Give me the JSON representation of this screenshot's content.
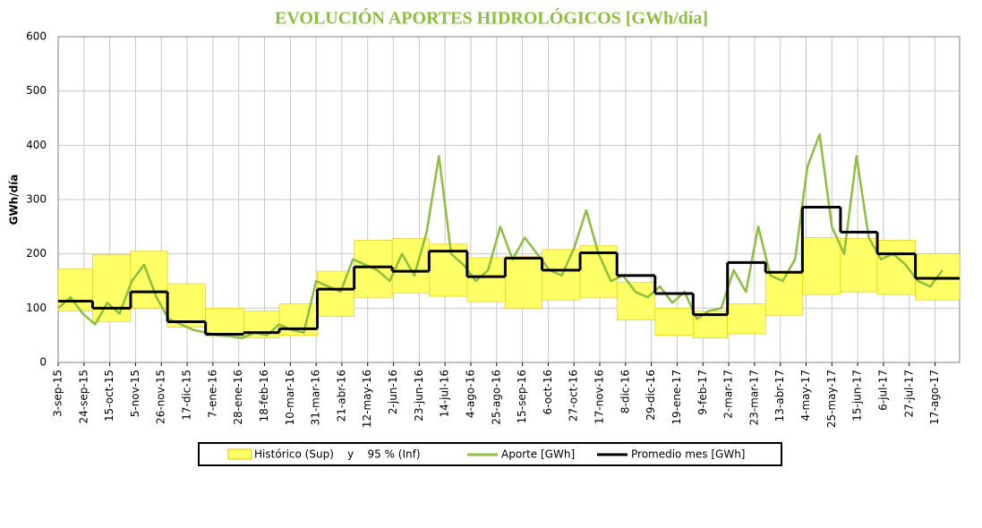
{
  "chart_data": {
    "type": "line",
    "title": "EVOLUCIÓN APORTES HIDROLÓGICOS [GWh/día]",
    "y_label": "GWh/día",
    "grid": true,
    "xlim": [
      "3-sep-15",
      "6-sep-17"
    ],
    "xticks": [
      "3-sep-15",
      "24-sep-15",
      "15-oct-15",
      "5-nov-15",
      "26-nov-15",
      "17-dic-15",
      "7-ene-16",
      "28-ene-16",
      "18-feb-16",
      "10-mar-16",
      "31-mar-16",
      "21-abr-16",
      "12-may-16",
      "2-jun-16",
      "23-jun-16",
      "14-jul-16",
      "4-ago-16",
      "25-ago-16",
      "15-sep-16",
      "6-oct-16",
      "27-oct-16",
      "17-nov-16",
      "8-dic-16",
      "29-dic-16",
      "19-ene-17",
      "9-feb-17",
      "2-mar-17",
      "23-mar-17",
      "13-abr-17",
      "4-may-17",
      "25-may-17",
      "15-jun-17",
      "6-jul-17",
      "27-jul-17",
      "17-ago-17"
    ],
    "ylim": [
      0,
      600
    ],
    "yticks": [
      0,
      100,
      200,
      300,
      400,
      500,
      600
    ],
    "band": {
      "name": "Histórico (Sup)    y    95 % (Inf)",
      "color": "#ffff66",
      "edge_color": "#f0c000",
      "x": [
        "3-sep-15",
        "1-oct-15",
        "1-nov-15",
        "1-dic-15",
        "1-ene-16",
        "1-feb-16",
        "1-mar-16",
        "1-abr-16",
        "1-may-16",
        "1-jun-16",
        "1-jul-16",
        "1-ago-16",
        "1-sep-16",
        "1-oct-16",
        "1-nov-16",
        "1-dic-16",
        "1-ene-17",
        "1-feb-17",
        "1-mar-17",
        "1-abr-17",
        "1-may-17",
        "1-jun-17",
        "1-jul-17",
        "1-ago-17"
      ],
      "upper": [
        172,
        198,
        205,
        145,
        100,
        95,
        108,
        168,
        225,
        228,
        218,
        193,
        195,
        208,
        215,
        148,
        100,
        95,
        108,
        168,
        230,
        228,
        225,
        200
      ],
      "lower": [
        95,
        75,
        100,
        65,
        48,
        45,
        50,
        85,
        120,
        128,
        122,
        112,
        100,
        115,
        120,
        78,
        50,
        45,
        53,
        87,
        125,
        130,
        125,
        115
      ]
    },
    "series": [
      {
        "name": "Aporte [GWh]",
        "color": "#8cbf3f",
        "x": [
          "3-sep-15",
          "13-sep-15",
          "23-sep-15",
          "3-oct-15",
          "13-oct-15",
          "23-oct-15",
          "2-nov-15",
          "12-nov-15",
          "22-nov-15",
          "2-dic-15",
          "12-dic-15",
          "22-dic-15",
          "1-ene-16",
          "11-ene-16",
          "21-ene-16",
          "31-ene-16",
          "10-feb-16",
          "20-feb-16",
          "1-mar-16",
          "11-mar-16",
          "21-mar-16",
          "31-mar-16",
          "10-abr-16",
          "20-abr-16",
          "30-abr-16",
          "10-may-16",
          "20-may-16",
          "30-may-16",
          "9-jun-16",
          "19-jun-16",
          "29-jun-16",
          "9-jul-16",
          "19-jul-16",
          "29-jul-16",
          "8-ago-16",
          "18-ago-16",
          "28-ago-16",
          "7-sep-16",
          "17-sep-16",
          "27-sep-16",
          "7-oct-16",
          "17-oct-16",
          "27-oct-16",
          "6-nov-16",
          "16-nov-16",
          "26-nov-16",
          "6-dic-16",
          "16-dic-16",
          "26-dic-16",
          "5-ene-17",
          "15-ene-17",
          "25-ene-17",
          "4-feb-17",
          "14-feb-17",
          "24-feb-17",
          "6-mar-17",
          "16-mar-17",
          "26-mar-17",
          "5-abr-17",
          "15-abr-17",
          "25-abr-17",
          "5-may-17",
          "15-may-17",
          "25-may-17",
          "4-jun-17",
          "14-jun-17",
          "24-jun-17",
          "4-jul-17",
          "14-jul-17",
          "24-jul-17",
          "3-ago-17",
          "13-ago-17",
          "23-ago-17"
        ],
        "values": [
          100,
          120,
          90,
          70,
          110,
          90,
          150,
          180,
          120,
          80,
          70,
          60,
          55,
          50,
          48,
          45,
          55,
          50,
          70,
          60,
          55,
          150,
          140,
          130,
          190,
          180,
          170,
          150,
          200,
          160,
          240,
          380,
          200,
          180,
          150,
          170,
          250,
          190,
          230,
          200,
          170,
          160,
          210,
          280,
          200,
          150,
          160,
          130,
          120,
          140,
          110,
          130,
          80,
          95,
          100,
          170,
          130,
          250,
          160,
          150,
          190,
          360,
          420,
          250,
          200,
          380,
          230,
          190,
          200,
          180,
          150,
          140,
          170
        ]
      },
      {
        "name": "Promedio mes [GWh]",
        "color": "#000000",
        "step": true,
        "x": [
          "3-sep-15",
          "1-oct-15",
          "1-nov-15",
          "1-dic-15",
          "1-ene-16",
          "1-feb-16",
          "1-mar-16",
          "1-abr-16",
          "1-may-16",
          "1-jun-16",
          "1-jul-16",
          "1-ago-16",
          "1-sep-16",
          "1-oct-16",
          "1-nov-16",
          "1-dic-16",
          "1-ene-17",
          "1-feb-17",
          "1-mar-17",
          "1-abr-17",
          "1-may-17",
          "1-jun-17",
          "1-jul-17",
          "1-ago-17"
        ],
        "values": [
          113,
          100,
          130,
          75,
          52,
          55,
          62,
          135,
          176,
          168,
          205,
          158,
          192,
          170,
          202,
          160,
          127,
          88,
          184,
          166,
          286,
          240,
          200,
          155
        ]
      }
    ]
  }
}
